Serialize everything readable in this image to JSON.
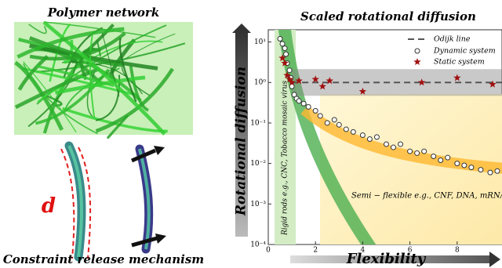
{
  "left_panel": {
    "top_title": "Polymer network",
    "bottom_title": "Constraint release mechanism",
    "d_label": "d"
  },
  "chart_data": {
    "type": "scatter",
    "title": "Scaled rotational diffusion",
    "y_label": "Rotational diffusion",
    "x_label": "Flexibility",
    "y_log": true,
    "xlim": [
      0,
      9.9
    ],
    "xticks": [
      0,
      2,
      4,
      6,
      8
    ],
    "ylim": [
      0.0001,
      20
    ],
    "yticks": [
      {
        "value": 10,
        "label": "10¹"
      },
      {
        "value": 1,
        "label": "10⁰"
      },
      {
        "value": 0.1,
        "label": "10⁻¹"
      },
      {
        "value": 0.01,
        "label": "10⁻²"
      },
      {
        "value": 0.001,
        "label": "10⁻³"
      },
      {
        "value": 0.0001,
        "label": "10⁻⁴"
      }
    ],
    "reference_line": {
      "name": "Odijk line",
      "value": 1,
      "color": "#555555"
    },
    "series": [
      {
        "name": "Dynamic system",
        "marker": "circle",
        "color": "#333333",
        "x": [
          0.5,
          0.6,
          0.7,
          0.75,
          0.8,
          0.9,
          0.95,
          1.0,
          1.1,
          1.2,
          1.3,
          1.5,
          1.7,
          2.0,
          2.2,
          2.5,
          2.8,
          3.0,
          3.3,
          3.6,
          4.0,
          4.3,
          4.6,
          5.0,
          5.3,
          5.6,
          6.0,
          6.3,
          6.6,
          7.0,
          7.3,
          7.6,
          8.0,
          8.3,
          8.6,
          9.0,
          9.4,
          9.7
        ],
        "values": [
          12,
          9,
          7,
          5,
          3,
          2,
          1.3,
          0.8,
          0.5,
          0.4,
          0.35,
          0.3,
          0.25,
          0.2,
          0.15,
          0.1,
          0.12,
          0.09,
          0.07,
          0.06,
          0.05,
          0.04,
          0.045,
          0.03,
          0.025,
          0.03,
          0.02,
          0.018,
          0.02,
          0.015,
          0.012,
          0.014,
          0.01,
          0.009,
          0.008,
          0.007,
          0.006,
          0.0065
        ]
      },
      {
        "name": "Static system",
        "marker": "star",
        "color": "#a01010",
        "x": [
          0.6,
          0.7,
          0.8,
          0.9,
          1.0,
          1.3,
          2.0,
          2.3,
          2.6,
          4.0,
          6.5,
          8.0,
          9.5
        ],
        "values": [
          4,
          3,
          1.5,
          1.2,
          1.0,
          1.1,
          1.2,
          0.8,
          1.1,
          0.6,
          1.0,
          1.3,
          0.9
        ]
      }
    ],
    "annotations": [
      "Rigid rods e.g., CNC, Tobacco mosaic virus",
      "Semi − flexible e.g., CNF, DNA, mRNA"
    ]
  }
}
